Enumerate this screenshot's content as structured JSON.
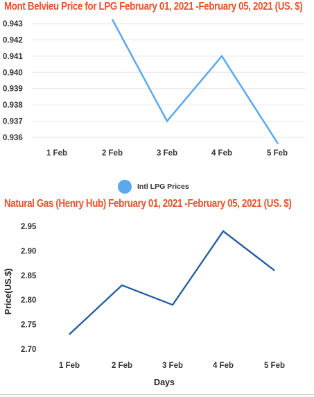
{
  "colors": {
    "title": "#e8512b",
    "series_1": "#5aa8ee",
    "series_2": "#1f5a9c",
    "grid": "#e6e6e6"
  },
  "legend": {
    "label": "Intl LPG Prices",
    "swatch_color": "#5aa8ee"
  },
  "chart_data": [
    {
      "type": "line",
      "title": "Mont Belvieu Price for LPG  February 01, 2021 -February 05, 2021  (US. $)",
      "xlabel": "",
      "ylabel": "",
      "categories": [
        "1 Feb",
        "2 Feb",
        "3 Feb",
        "4 Feb",
        "5 Feb"
      ],
      "series": [
        {
          "name": "Intl LPG Prices",
          "values": [
            null,
            0.943,
            0.937,
            0.941,
            0.936
          ]
        }
      ],
      "yticks": [
        "0.943",
        "0.942",
        "0.941",
        "0.940",
        "0.939",
        "0.938",
        "0.937",
        "0.936"
      ],
      "ylim": [
        0.936,
        0.943
      ],
      "grid": "horizontal",
      "legend_position": "bottom-center"
    },
    {
      "type": "line",
      "title": "Natural Gas (Henry Hub) February 01, 2021 -February 05, 2021  (US. $)",
      "xlabel": "Days",
      "ylabel": "Price(US.$)",
      "categories": [
        "1 Feb",
        "2 Feb",
        "3 Feb",
        "4 Feb",
        "5 Feb"
      ],
      "series": [
        {
          "values": [
            2.73,
            2.83,
            2.79,
            2.94,
            2.86
          ]
        }
      ],
      "yticks": [
        "2.95",
        "2.90",
        "2.85",
        "2.80",
        "2.75",
        "2.70"
      ],
      "ylim": [
        2.7,
        2.95
      ],
      "grid": "none",
      "legend_position": "none"
    }
  ]
}
